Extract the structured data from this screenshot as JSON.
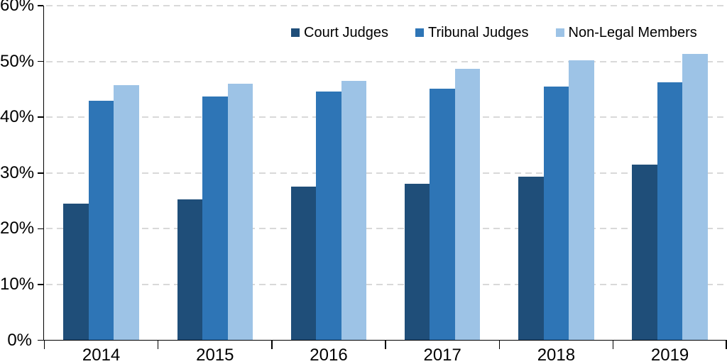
{
  "chart_data": {
    "type": "bar",
    "title": "",
    "xlabel": "",
    "ylabel": "",
    "categories": [
      "2014",
      "2015",
      "2016",
      "2017",
      "2018",
      "2019"
    ],
    "series": [
      {
        "name": "Court Judges",
        "color": "#1F4E79",
        "values": [
          24.5,
          25.2,
          27.5,
          28.0,
          29.3,
          31.5
        ]
      },
      {
        "name": "Tribunal Judges",
        "color": "#2E75B6",
        "values": [
          43.0,
          43.7,
          44.6,
          45.1,
          45.5,
          46.3
        ]
      },
      {
        "name": "Non-Legal Members",
        "color": "#9DC3E6",
        "values": [
          45.7,
          46.0,
          46.5,
          48.7,
          50.2,
          51.3
        ]
      }
    ],
    "ylim": [
      0,
      60
    ],
    "ytick_step": 10,
    "ytick_labels": [
      "0%",
      "10%",
      "20%",
      "30%",
      "40%",
      "50%",
      "60%"
    ],
    "grid": "horizontal-dashed",
    "gridline_color": "#D9D9D9",
    "axis_color": "#000000",
    "legend_position": "top-right"
  }
}
